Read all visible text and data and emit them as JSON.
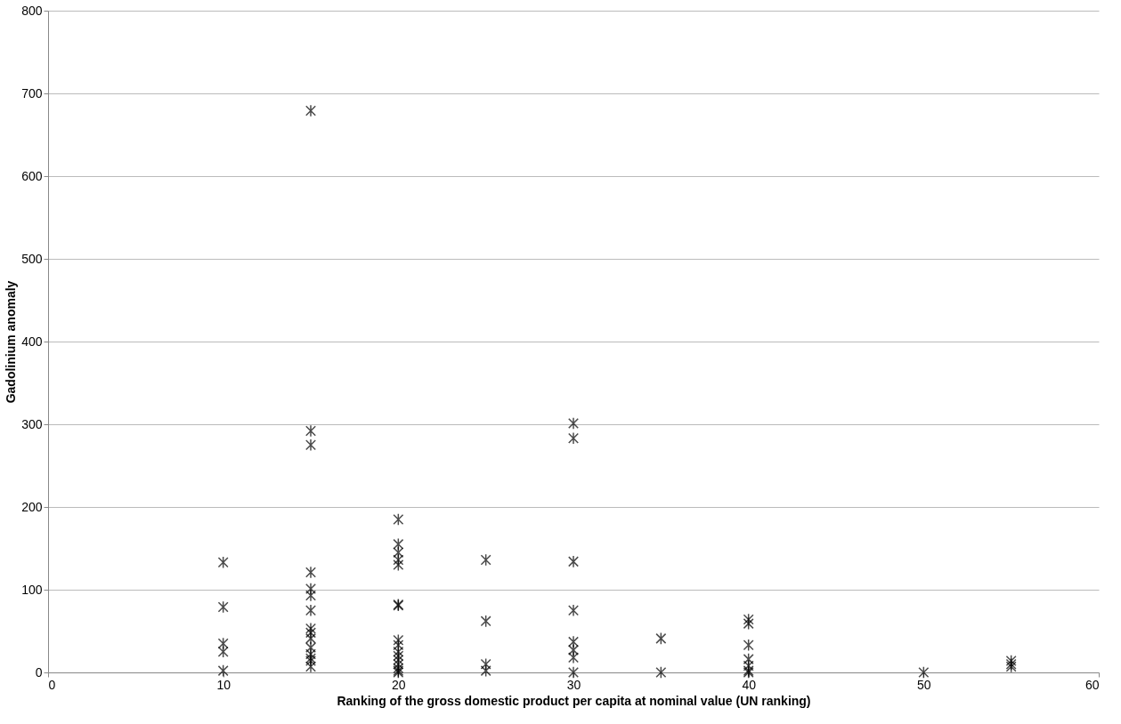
{
  "chart_data": {
    "type": "scatter",
    "xlabel": "Ranking of the gross domestic product per capita at nominal value (UN ranking)",
    "ylabel": "Gadolinium anomaly",
    "x": [
      10,
      10,
      10,
      10,
      10,
      15,
      15,
      15,
      15,
      15,
      15,
      15,
      15,
      15,
      15,
      15,
      15,
      15,
      15,
      15,
      20,
      20,
      20,
      20,
      20,
      20,
      20,
      20,
      20,
      20,
      20,
      20,
      20,
      20,
      20,
      20,
      25,
      25,
      25,
      25,
      30,
      30,
      30,
      30,
      30,
      30,
      30,
      30,
      35,
      35,
      40,
      40,
      40,
      40,
      40,
      40,
      40,
      50,
      55,
      55,
      55
    ],
    "values": [
      133,
      79,
      35,
      25,
      2,
      679,
      292,
      275,
      121,
      101,
      93,
      75,
      53,
      48,
      41,
      30,
      22,
      14,
      7,
      17,
      185,
      155,
      145,
      136,
      130,
      82,
      81,
      39,
      33,
      25,
      20,
      15,
      10,
      5,
      2,
      0,
      136,
      62,
      10,
      2,
      301,
      283,
      134,
      75,
      37,
      27,
      18,
      0,
      41,
      0,
      64,
      59,
      33,
      16,
      8,
      2,
      0,
      0,
      14,
      10,
      7
    ],
    "color": "#000000",
    "marker": "cross",
    "xlim": [
      0,
      60
    ],
    "xticks": [
      0,
      10,
      20,
      30,
      40,
      50,
      60
    ],
    "ylim": [
      0,
      800
    ],
    "yticks": [
      0,
      100,
      200,
      300,
      400,
      500,
      600,
      700,
      800
    ],
    "grid": "y"
  }
}
